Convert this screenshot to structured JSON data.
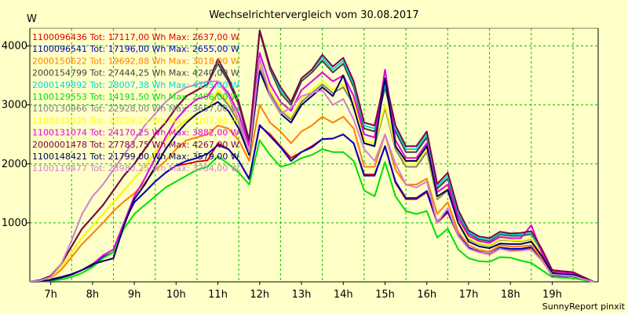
{
  "chart_data": {
    "type": "line",
    "title": "Wechselrichtervergleich vom 30.08.2017",
    "ylabel": "W",
    "xlabel": "",
    "footer": "SunnyReport pinxit",
    "ylim": [
      0,
      4300
    ],
    "xlim": [
      6.5,
      20.1
    ],
    "yticks": [
      1000,
      2000,
      3000,
      4000
    ],
    "xticks": [
      {
        "value": 7,
        "label": "7h"
      },
      {
        "value": 8,
        "label": "8h"
      },
      {
        "value": 9,
        "label": "9h"
      },
      {
        "value": 10,
        "label": "10h"
      },
      {
        "value": 11,
        "label": "11h"
      },
      {
        "value": 12,
        "label": "12h"
      },
      {
        "value": 13,
        "label": "13h"
      },
      {
        "value": 14,
        "label": "14h"
      },
      {
        "value": 15,
        "label": "15h"
      },
      {
        "value": 16,
        "label": "16h"
      },
      {
        "value": 17,
        "label": "17h"
      },
      {
        "value": 18,
        "label": "18h"
      },
      {
        "value": 19,
        "label": "19h"
      }
    ],
    "grid": true,
    "legend_placement": "top-left",
    "x": [
      6.5,
      6.75,
      7.0,
      7.25,
      7.5,
      7.75,
      8.0,
      8.25,
      8.5,
      8.75,
      9.0,
      9.25,
      9.5,
      9.75,
      10.0,
      10.25,
      10.5,
      10.75,
      11.0,
      11.25,
      11.5,
      11.75,
      12.0,
      12.25,
      12.5,
      12.75,
      13.0,
      13.25,
      13.5,
      13.75,
      14.0,
      14.25,
      14.5,
      14.75,
      15.0,
      15.25,
      15.5,
      15.75,
      16.0,
      16.25,
      16.5,
      16.75,
      17.0,
      17.25,
      17.5,
      17.75,
      18.0,
      18.25,
      18.5,
      18.75,
      19.0,
      19.25,
      19.5,
      19.75,
      20.0
    ],
    "series": [
      {
        "name": "1100096436 Tot: 17117,00 Wh Max: 2637,00 W",
        "color": "#e00000",
        "values": [
          0,
          15,
          40,
          80,
          130,
          200,
          280,
          420,
          500,
          1000,
          1350,
          1520,
          1700,
          1850,
          1970,
          2000,
          2040,
          2060,
          2350,
          2250,
          2050,
          1750,
          2640,
          2500,
          2300,
          2100,
          2200,
          2300,
          2420,
          2430,
          2500,
          2350,
          1820,
          1820,
          2300,
          1680,
          1400,
          1400,
          1520,
          1000,
          1180,
          780,
          570,
          500,
          470,
          560,
          530,
          540,
          560,
          370,
          110,
          100,
          95,
          40,
          0
        ]
      },
      {
        "name": "1100096541 Tot: 17196,00 Wh Max: 2655,00 W",
        "color": "#0000c0",
        "values": [
          0,
          15,
          40,
          80,
          130,
          200,
          280,
          420,
          500,
          1000,
          1350,
          1520,
          1700,
          1850,
          1970,
          2050,
          2100,
          2170,
          2320,
          2250,
          2050,
          1740,
          2660,
          2470,
          2280,
          2050,
          2200,
          2280,
          2420,
          2430,
          2500,
          2350,
          1800,
          1800,
          2300,
          1700,
          1420,
          1420,
          1540,
          1020,
          1200,
          800,
          580,
          510,
          480,
          580,
          560,
          560,
          590,
          370,
          110,
          100,
          95,
          40,
          0
        ]
      },
      {
        "name": "2000150622 Tot: 19692,88 Wh Max: 3018,00 W",
        "color": "#ff8000",
        "values": [
          0,
          20,
          60,
          200,
          420,
          640,
          820,
          1000,
          1200,
          1360,
          1500,
          1680,
          1900,
          2050,
          2250,
          2400,
          2450,
          2500,
          2650,
          2600,
          2400,
          2050,
          3000,
          2700,
          2550,
          2350,
          2550,
          2650,
          2800,
          2700,
          2800,
          2600,
          1950,
          1950,
          2500,
          1900,
          1650,
          1650,
          1750,
          1150,
          1350,
          850,
          620,
          540,
          510,
          620,
          600,
          600,
          620,
          400,
          120,
          110,
          100,
          50,
          0
        ]
      },
      {
        "name": "2000154799 Tot: 27444,25 Wh Max: 4240,00 W",
        "color": "#404040",
        "values": [
          0,
          30,
          100,
          300,
          600,
          900,
          1100,
          1300,
          1550,
          1800,
          2000,
          2250,
          2500,
          2700,
          2950,
          3150,
          3250,
          3350,
          3700,
          3400,
          3000,
          2350,
          4240,
          3600,
          3200,
          3000,
          3400,
          3550,
          3750,
          3550,
          3700,
          3300,
          2600,
          2550,
          3300,
          2550,
          2200,
          2200,
          2450,
          1580,
          1750,
          1150,
          820,
          720,
          690,
          800,
          780,
          780,
          810,
          520,
          180,
          160,
          150,
          70,
          0
        ]
      },
      {
        "name": "2000149892 Tot: 28007,38 Wh Max: 4265,00 W",
        "color": "#00d8d8",
        "values": [
          0,
          30,
          100,
          300,
          600,
          900,
          1100,
          1300,
          1550,
          1800,
          2000,
          2250,
          2500,
          2700,
          2950,
          3150,
          3250,
          3350,
          3750,
          3450,
          3050,
          2400,
          4265,
          3650,
          3250,
          3050,
          3450,
          3600,
          3800,
          3600,
          3750,
          3350,
          2650,
          2600,
          3350,
          2600,
          2250,
          2250,
          2500,
          1620,
          1800,
          1180,
          840,
          740,
          710,
          820,
          800,
          800,
          830,
          530,
          190,
          170,
          160,
          75,
          0
        ]
      },
      {
        "name": "1100129553 Tot: 14191,50 Wh Max: 2406,00 W",
        "color": "#00e000",
        "values": [
          0,
          5,
          15,
          40,
          80,
          150,
          250,
          400,
          500,
          900,
          1150,
          1300,
          1450,
          1600,
          1700,
          1800,
          1900,
          1950,
          2130,
          2000,
          1850,
          1650,
          2400,
          2150,
          1950,
          2000,
          2100,
          2150,
          2250,
          2200,
          2200,
          2050,
          1550,
          1450,
          2030,
          1450,
          1200,
          1150,
          1200,
          750,
          900,
          550,
          400,
          350,
          340,
          420,
          410,
          360,
          320,
          200,
          80,
          70,
          60,
          30,
          0
        ]
      },
      {
        "name": "1100130966 Tot: 22928,00 Wh Max: 3657,00 W",
        "color": "#808080",
        "values": [
          0,
          20,
          70,
          250,
          500,
          750,
          950,
          1150,
          1350,
          1550,
          1750,
          1950,
          2200,
          2400,
          2600,
          2750,
          2850,
          2950,
          3200,
          3000,
          2700,
          2150,
          3657,
          3200,
          2900,
          2750,
          3050,
          3200,
          3350,
          3200,
          3300,
          3000,
          2350,
          2300,
          2950,
          2250,
          1950,
          1950,
          2200,
          1400,
          1550,
          1000,
          720,
          640,
          610,
          710,
          700,
          690,
          720,
          470,
          160,
          140,
          130,
          60,
          0
        ]
      },
      {
        "name": "1100131025 Tot: 23229,25 Wh Max: 3707,00 W",
        "color": "#ffff00",
        "values": [
          0,
          20,
          70,
          250,
          500,
          750,
          950,
          1150,
          1350,
          1550,
          1750,
          1950,
          2200,
          2400,
          2600,
          2750,
          2850,
          2950,
          3250,
          3050,
          2750,
          2200,
          3707,
          3250,
          2950,
          2800,
          3100,
          3250,
          3400,
          3250,
          3350,
          3050,
          2400,
          2350,
          3000,
          2300,
          2000,
          2000,
          2250,
          1430,
          1580,
          1020,
          740,
          650,
          620,
          720,
          710,
          700,
          730,
          480,
          165,
          145,
          135,
          65,
          0
        ]
      },
      {
        "name": "1100131074 Tot: 24170,25 Wh Max: 3882,00 W",
        "color": "#e000e0",
        "values": [
          0,
          10,
          30,
          70,
          120,
          200,
          300,
          450,
          550,
          1000,
          1450,
          1750,
          2100,
          2450,
          2750,
          2950,
          3100,
          3150,
          3400,
          3200,
          2850,
          2300,
          3882,
          3350,
          3050,
          2900,
          3250,
          3400,
          3550,
          3400,
          3500,
          3150,
          2500,
          2450,
          3600,
          2400,
          2100,
          2100,
          2350,
          1520,
          1650,
          1080,
          780,
          690,
          660,
          760,
          740,
          740,
          960,
          500,
          180,
          160,
          145,
          70,
          0
        ]
      },
      {
        "name": "2000001478 Tot: 27783,75 Wh Max: 4267,00 W",
        "color": "#800040",
        "values": [
          0,
          30,
          100,
          300,
          600,
          900,
          1100,
          1300,
          1550,
          1800,
          2000,
          2250,
          2500,
          2700,
          2950,
          3150,
          3250,
          3350,
          3780,
          3450,
          3050,
          2400,
          4267,
          3650,
          3300,
          3050,
          3450,
          3600,
          3850,
          3650,
          3800,
          3400,
          2700,
          2650,
          3450,
          2650,
          2300,
          2300,
          2550,
          1660,
          1850,
          1220,
          870,
          770,
          740,
          850,
          820,
          830,
          860,
          560,
          200,
          180,
          165,
          80,
          0
        ]
      },
      {
        "name": "1100148421 Tot: 21799,00 Wh Max: 3579,00 W",
        "color": "#000060",
        "values": [
          0,
          10,
          30,
          70,
          120,
          200,
          300,
          350,
          400,
          950,
          1400,
          1650,
          1950,
          2250,
          2500,
          2700,
          2850,
          2950,
          3050,
          2900,
          2600,
          2150,
          3579,
          3150,
          2850,
          2700,
          3000,
          3150,
          3300,
          3150,
          3500,
          2950,
          2350,
          2300,
          3450,
          2300,
          2050,
          2050,
          2300,
          1450,
          1560,
          1000,
          680,
          600,
          570,
          650,
          640,
          640,
          680,
          440,
          150,
          130,
          120,
          55,
          0
        ]
      },
      {
        "name": "1100119477 Tot: 23980,25 Wh Max: 3784,00 W",
        "color": "#d080d0",
        "values": [
          0,
          20,
          80,
          300,
          700,
          1150,
          1450,
          1650,
          1900,
          2150,
          2400,
          2650,
          2850,
          3050,
          3200,
          3300,
          3350,
          3400,
          3400,
          3150,
          2750,
          2200,
          3784,
          3150,
          2850,
          2950,
          3150,
          3200,
          3250,
          3000,
          3100,
          2750,
          2250,
          2050,
          2500,
          2000,
          1650,
          1600,
          1700,
          1000,
          1250,
          780,
          560,
          500,
          480,
          560,
          520,
          530,
          550,
          360,
          120,
          110,
          100,
          45,
          0
        ]
      }
    ]
  }
}
